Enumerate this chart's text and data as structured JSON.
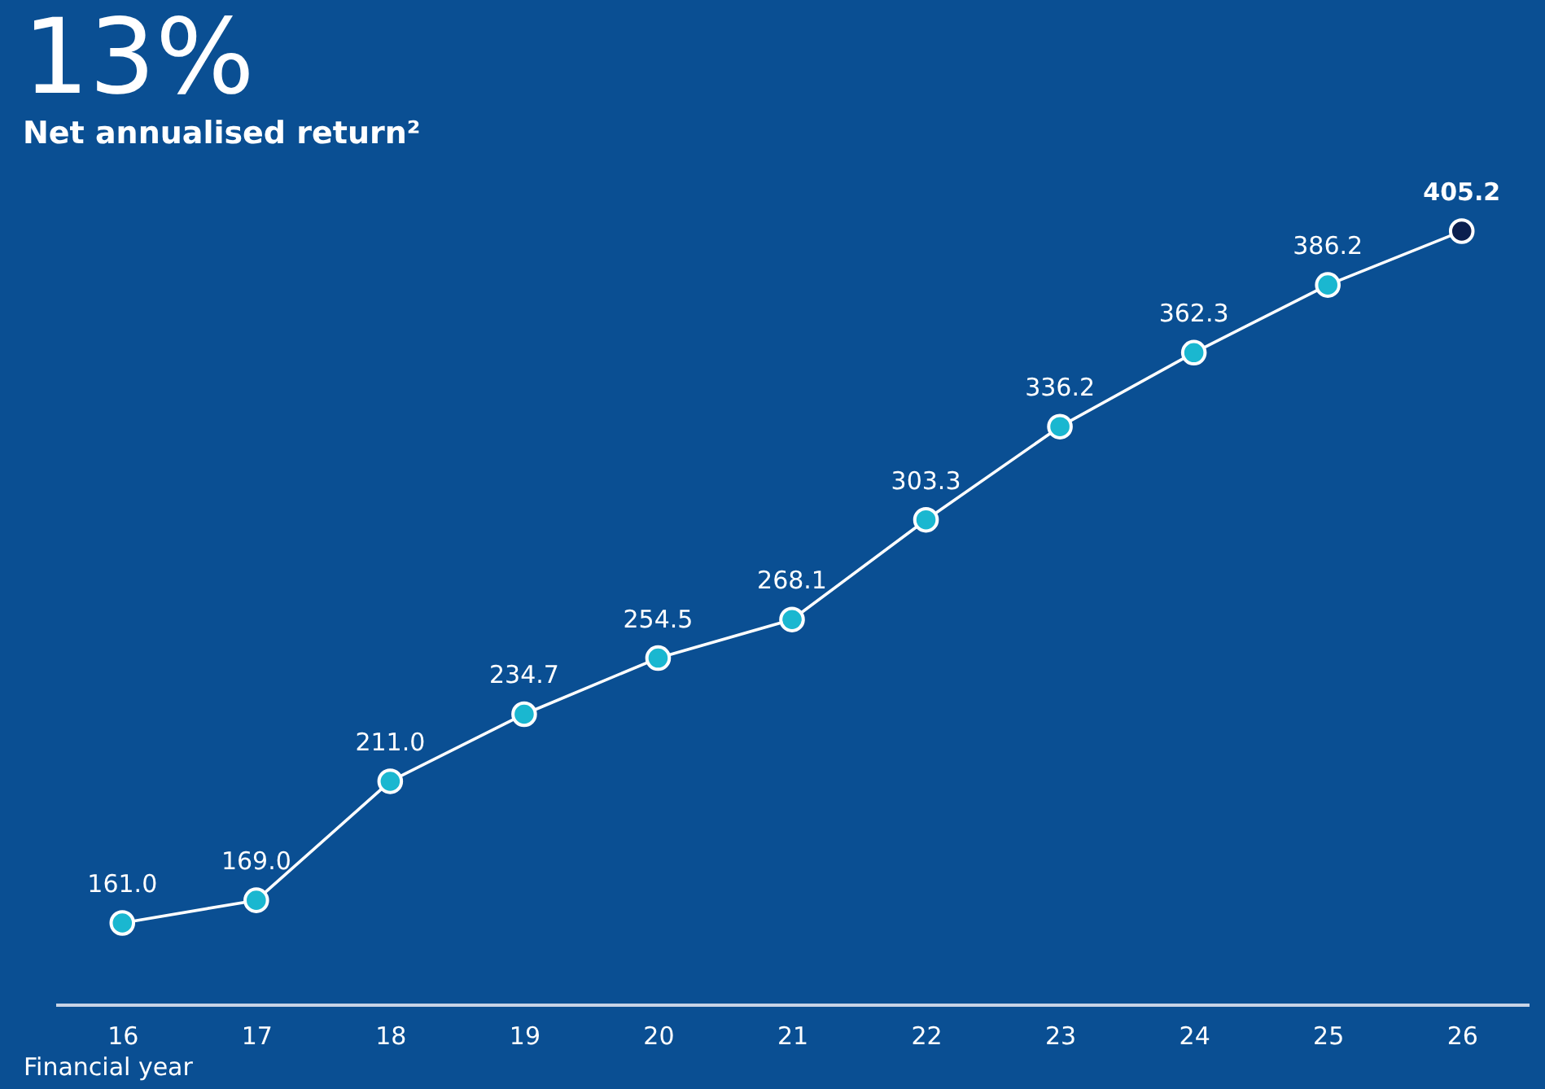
{
  "chart_data": {
    "type": "line",
    "title": "13%",
    "subtitle": "Net annualised return²",
    "xlabel": "Financial year",
    "categories": [
      "16",
      "17",
      "18",
      "19",
      "20",
      "21",
      "22",
      "23",
      "24",
      "25",
      "26"
    ],
    "series": [
      {
        "color": "#ffffff",
        "values": [
          161.0,
          169.0,
          211.0,
          234.7,
          254.5,
          268.1,
          303.3,
          336.2,
          362.3,
          386.2,
          405.2
        ],
        "value_labels": [
          "161.0",
          "169.0",
          "211.0",
          "234.7",
          "254.5",
          "268.1",
          "303.3",
          "336.2",
          "362.3",
          "386.2",
          "405.2"
        ],
        "colors": [
          "#1ab7d0",
          "#1ab7d0",
          "#1ab7d0",
          "#1ab7d0",
          "#1ab7d0",
          "#1ab7d0",
          "#1ab7d0",
          "#1ab7d0",
          "#1ab7d0",
          "#1ab7d0",
          "#0b1f4f"
        ]
      }
    ],
    "marker": "circle",
    "line_style": "solid",
    "grid": false
  }
}
